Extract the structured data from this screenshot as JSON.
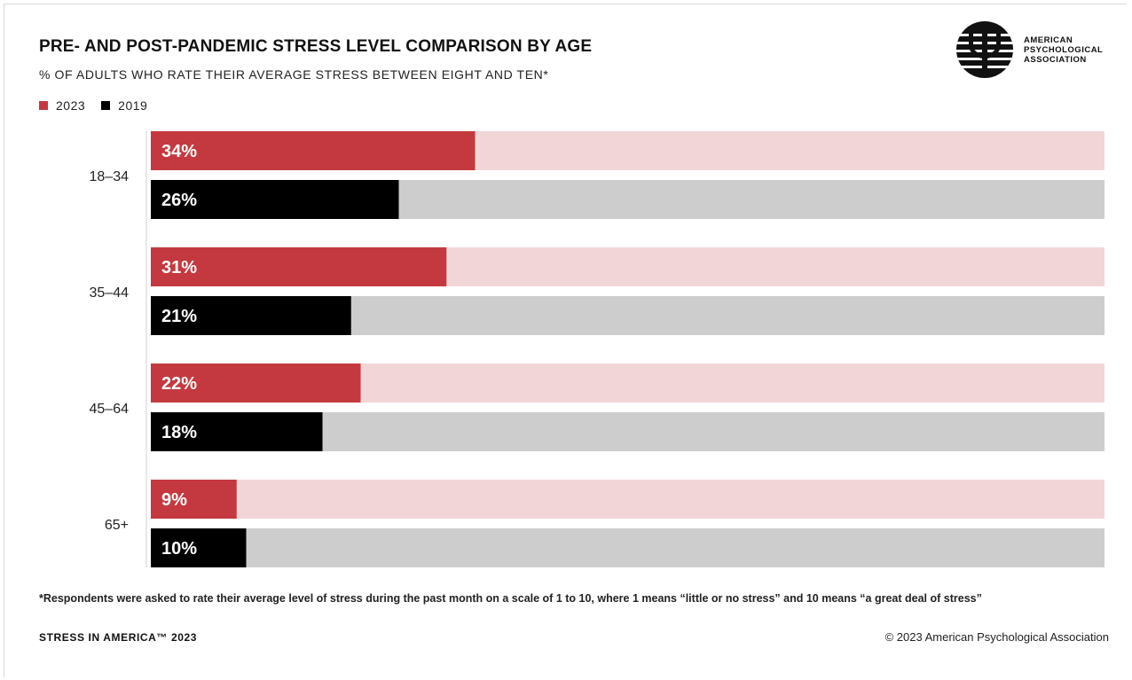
{
  "header": {
    "title": "PRE- AND POST-PANDEMIC STRESS LEVEL COMPARISON BY AGE",
    "subtitle": "% OF ADULTS WHO RATE THEIR AVERAGE STRESS BETWEEN EIGHT AND TEN*"
  },
  "logo": {
    "lines": [
      "AMERICAN",
      "PSYCHOLOGICAL",
      "ASSOCIATION"
    ],
    "icon": "psi-seal-icon"
  },
  "legend": [
    {
      "label": "2023",
      "color": "#c4393f"
    },
    {
      "label": "2019",
      "color": "#000000"
    }
  ],
  "colors": {
    "s2023": "#c4393f",
    "s2023_track": "#f2d6d7",
    "s2019": "#000000",
    "s2019_track": "#cdcdcd"
  },
  "chart_data": {
    "type": "bar",
    "orientation": "horizontal",
    "categories": [
      "18–34",
      "35–44",
      "45–64",
      "65+"
    ],
    "series": [
      {
        "name": "2023",
        "values": [
          34,
          31,
          22,
          9
        ],
        "labels": [
          "34%",
          "31%",
          "22%",
          "9%"
        ]
      },
      {
        "name": "2019",
        "values": [
          26,
          21,
          18,
          10
        ],
        "labels": [
          "26%",
          "21%",
          "18%",
          "10%"
        ]
      }
    ],
    "xlim": [
      0,
      100
    ],
    "unit": "%",
    "grid": false,
    "legend_position": "top-left"
  },
  "footnote": "*Respondents were asked to rate their average level of stress during the past month on a scale of 1 to 10, where 1 means “little or no stress” and 10 means “a great deal of stress”",
  "footer": {
    "left": "STRESS IN AMERICA™ 2023",
    "right": "© 2023 American Psychological Association"
  }
}
